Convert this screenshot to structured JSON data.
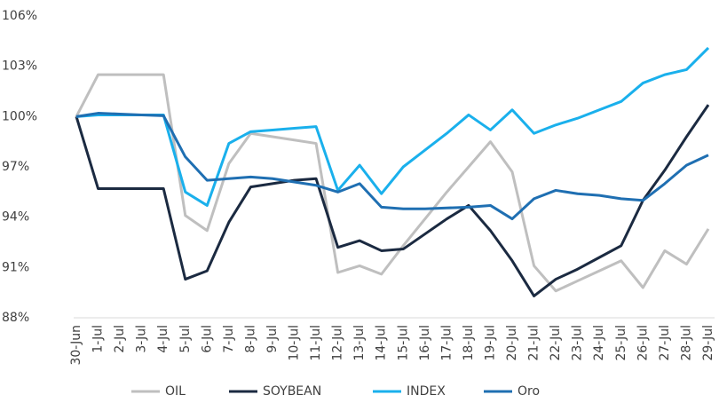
{
  "chart_data": {
    "type": "line",
    "categories": [
      "30-Jun",
      "1-Jul",
      "2-Jul",
      "3-Jul",
      "4-Jul",
      "5-Jul",
      "6-Jul",
      "7-Jul",
      "8-Jul",
      "9-Jul",
      "10-Jul",
      "11-Jul",
      "12-Jul",
      "13-Jul",
      "14-Jul",
      "15-Jul",
      "16-Jul",
      "17-Jul",
      "18-Jul",
      "19-Jul",
      "20-Jul",
      "21-Jul",
      "22-Jul",
      "23-Jul",
      "24-Jul",
      "25-Jul",
      "26-Jul",
      "27-Jul",
      "28-Jul",
      "29-Jul"
    ],
    "series": [
      {
        "name": "OIL",
        "color": "#bfbfbf",
        "values": [
          100,
          102.5,
          102.5,
          102.5,
          102.5,
          94.1,
          93.2,
          97.2,
          99,
          98.8,
          98.6,
          98.4,
          90.7,
          91.1,
          90.6,
          92.3,
          93.9,
          95.5,
          97,
          98.5,
          96.7,
          91.1,
          89.6,
          90.2,
          90.8,
          91.4,
          89.8,
          92,
          91.2,
          93.3
        ]
      },
      {
        "name": "SOYBEAN",
        "color": "#1b2a41",
        "values": [
          100,
          95.7,
          95.7,
          95.7,
          95.7,
          90.3,
          90.8,
          93.7,
          95.8,
          96,
          96.2,
          96.3,
          92.2,
          92.6,
          92,
          92.1,
          93,
          93.9,
          94.7,
          93.2,
          91.4,
          89.3,
          90.3,
          90.9,
          91.6,
          92.3,
          95,
          96.8,
          98.8,
          100.7
        ]
      },
      {
        "name": "INDEX",
        "color": "#1ab0ec",
        "values": [
          100,
          100.1,
          100.1,
          100.1,
          100.1,
          95.5,
          94.7,
          98.4,
          99.1,
          99.2,
          99.3,
          99.4,
          95.6,
          97.1,
          95.4,
          97,
          98,
          99,
          100.1,
          99.2,
          100.4,
          99,
          99.5,
          99.9,
          100.4,
          100.9,
          102,
          102.5,
          102.8,
          104.1
        ]
      },
      {
        "name": "Oro",
        "color": "#1f6fb2",
        "values": [
          100,
          100.2,
          100.15,
          100.1,
          100.05,
          97.6,
          96.2,
          96.3,
          96.4,
          96.3,
          96.1,
          95.9,
          95.5,
          96,
          94.6,
          94.5,
          94.5,
          94.55,
          94.6,
          94.7,
          93.9,
          95.1,
          95.6,
          95.4,
          95.3,
          95.1,
          95,
          96,
          97.1,
          97.7
        ]
      }
    ],
    "ylim": [
      88,
      106
    ],
    "yticks": [
      {
        "value": 88,
        "label": "88%"
      },
      {
        "value": 91,
        "label": "91%"
      },
      {
        "value": 94,
        "label": "94%"
      },
      {
        "value": 97,
        "label": "97%"
      },
      {
        "value": 100,
        "label": "100%"
      },
      {
        "value": 103,
        "label": "103%"
      },
      {
        "value": 106,
        "label": "106%"
      }
    ],
    "legend": "bottom"
  }
}
